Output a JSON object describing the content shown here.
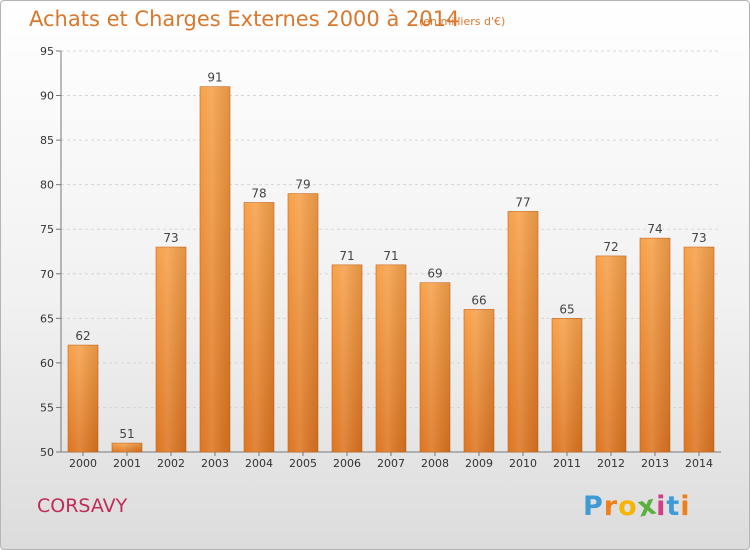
{
  "title": "Achats et Charges Externes 2000 à 2014",
  "unit": "(en milliers d'€)",
  "commune": "CORSAVY",
  "brand": {
    "letters": [
      "P",
      "r",
      "o",
      "x",
      "i",
      "t",
      "i"
    ],
    "colors": [
      "#3f9ad6",
      "#f07f1a",
      "#f4b400",
      "#5ab03e",
      "#d63b86",
      "#3f9ad6",
      "#f07f1a"
    ]
  },
  "colors": {
    "title": "#d9782d",
    "commune": "#c02c57",
    "bar_top": "#f7a14a",
    "bar_bottom": "#dd7520",
    "grid": "#d6d6d6"
  },
  "chart_data": {
    "type": "bar",
    "categories": [
      "2000",
      "2001",
      "2002",
      "2003",
      "2004",
      "2005",
      "2006",
      "2007",
      "2008",
      "2009",
      "2010",
      "2011",
      "2012",
      "2013",
      "2014"
    ],
    "values": [
      62,
      51,
      73,
      91,
      78,
      79,
      71,
      71,
      69,
      66,
      77,
      65,
      72,
      74,
      73
    ],
    "ylim": [
      50,
      95
    ],
    "yticks": [
      50,
      55,
      60,
      65,
      70,
      75,
      80,
      85,
      90,
      95
    ],
    "grid": true,
    "data_labels": true
  }
}
